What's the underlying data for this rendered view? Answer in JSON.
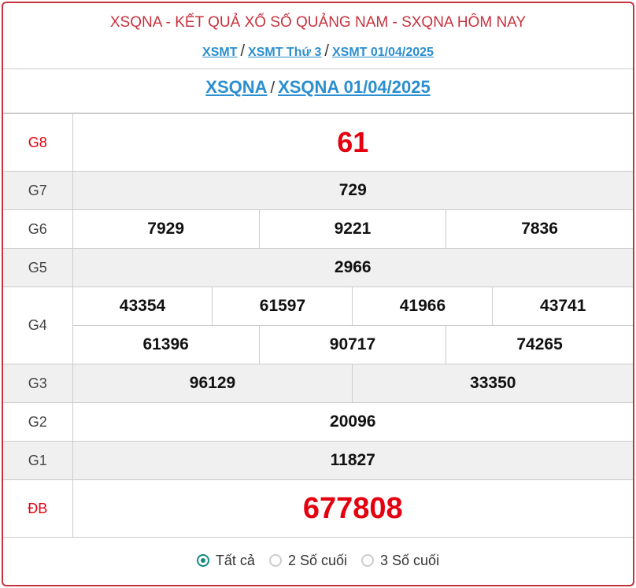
{
  "header": {
    "title": "XSQNA - KẾT QUẢ XỔ SỐ QUẢNG NAM - SXQNA HÔM NAY",
    "breadcrumb": [
      "XSMT",
      "XSMT Thứ 3",
      "XSMT 01/04/2025"
    ],
    "separator": "/"
  },
  "subtitle": {
    "links": [
      "XSQNA",
      "XSQNA 01/04/2025"
    ]
  },
  "prizes": {
    "g8": {
      "label": "G8",
      "values": [
        "61"
      ]
    },
    "g7": {
      "label": "G7",
      "values": [
        "729"
      ]
    },
    "g6": {
      "label": "G6",
      "values": [
        "7929",
        "9221",
        "7836"
      ]
    },
    "g5": {
      "label": "G5",
      "values": [
        "2966"
      ]
    },
    "g4": {
      "label": "G4",
      "values": [
        "43354",
        "61597",
        "41966",
        "43741",
        "61396",
        "90717",
        "74265"
      ]
    },
    "g3": {
      "label": "G3",
      "values": [
        "96129",
        "33350"
      ]
    },
    "g2": {
      "label": "G2",
      "values": [
        "20096"
      ]
    },
    "g1": {
      "label": "G1",
      "values": [
        "11827"
      ]
    },
    "db": {
      "label": "ĐB",
      "values": [
        "677808"
      ]
    }
  },
  "filter": {
    "options": [
      "Tất cả",
      "2 Số cuối",
      "3 Số cuối"
    ],
    "selected": "Tất cả"
  },
  "colors": {
    "accent": "#c8323f",
    "link": "#2b8fcf",
    "prize_red": "#e4000f",
    "radio": "#148a7f"
  }
}
